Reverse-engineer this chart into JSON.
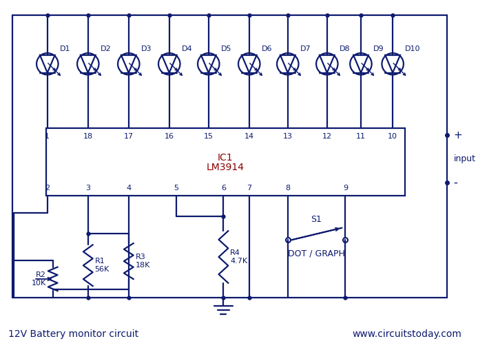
{
  "title": "12V Battery monitor circuit",
  "website": "www.circuitstoday.com",
  "bg_color": "#ffffff",
  "line_color": "#0d1a6e",
  "text_color": "#0d1a6e",
  "figsize": [
    6.94,
    5.08
  ],
  "dpi": 100,
  "led_labels": [
    "D1",
    "D2",
    "D3",
    "D4",
    "D5",
    "D6",
    "D7",
    "D8",
    "D9",
    "D10"
  ],
  "pin_top_labels": [
    "1",
    "18",
    "17",
    "16",
    "15",
    "14",
    "13",
    "12",
    "11",
    "10"
  ],
  "pin_bot_labels": [
    "2",
    "3",
    "4",
    "5",
    "6",
    "7",
    "8",
    "9"
  ],
  "ic_label_1": "IC1",
  "ic_label_2": "LM3914",
  "r1_label": "R1\n56K",
  "r2_label": "R2\n10K",
  "r3_label": "R3\n18K",
  "r4_label": "R4\n4.7K",
  "s1_label": "S1",
  "dot_graph_label": "DOT / GRAPH",
  "input_label": "input",
  "plus_label": "+",
  "minus_label": "-"
}
